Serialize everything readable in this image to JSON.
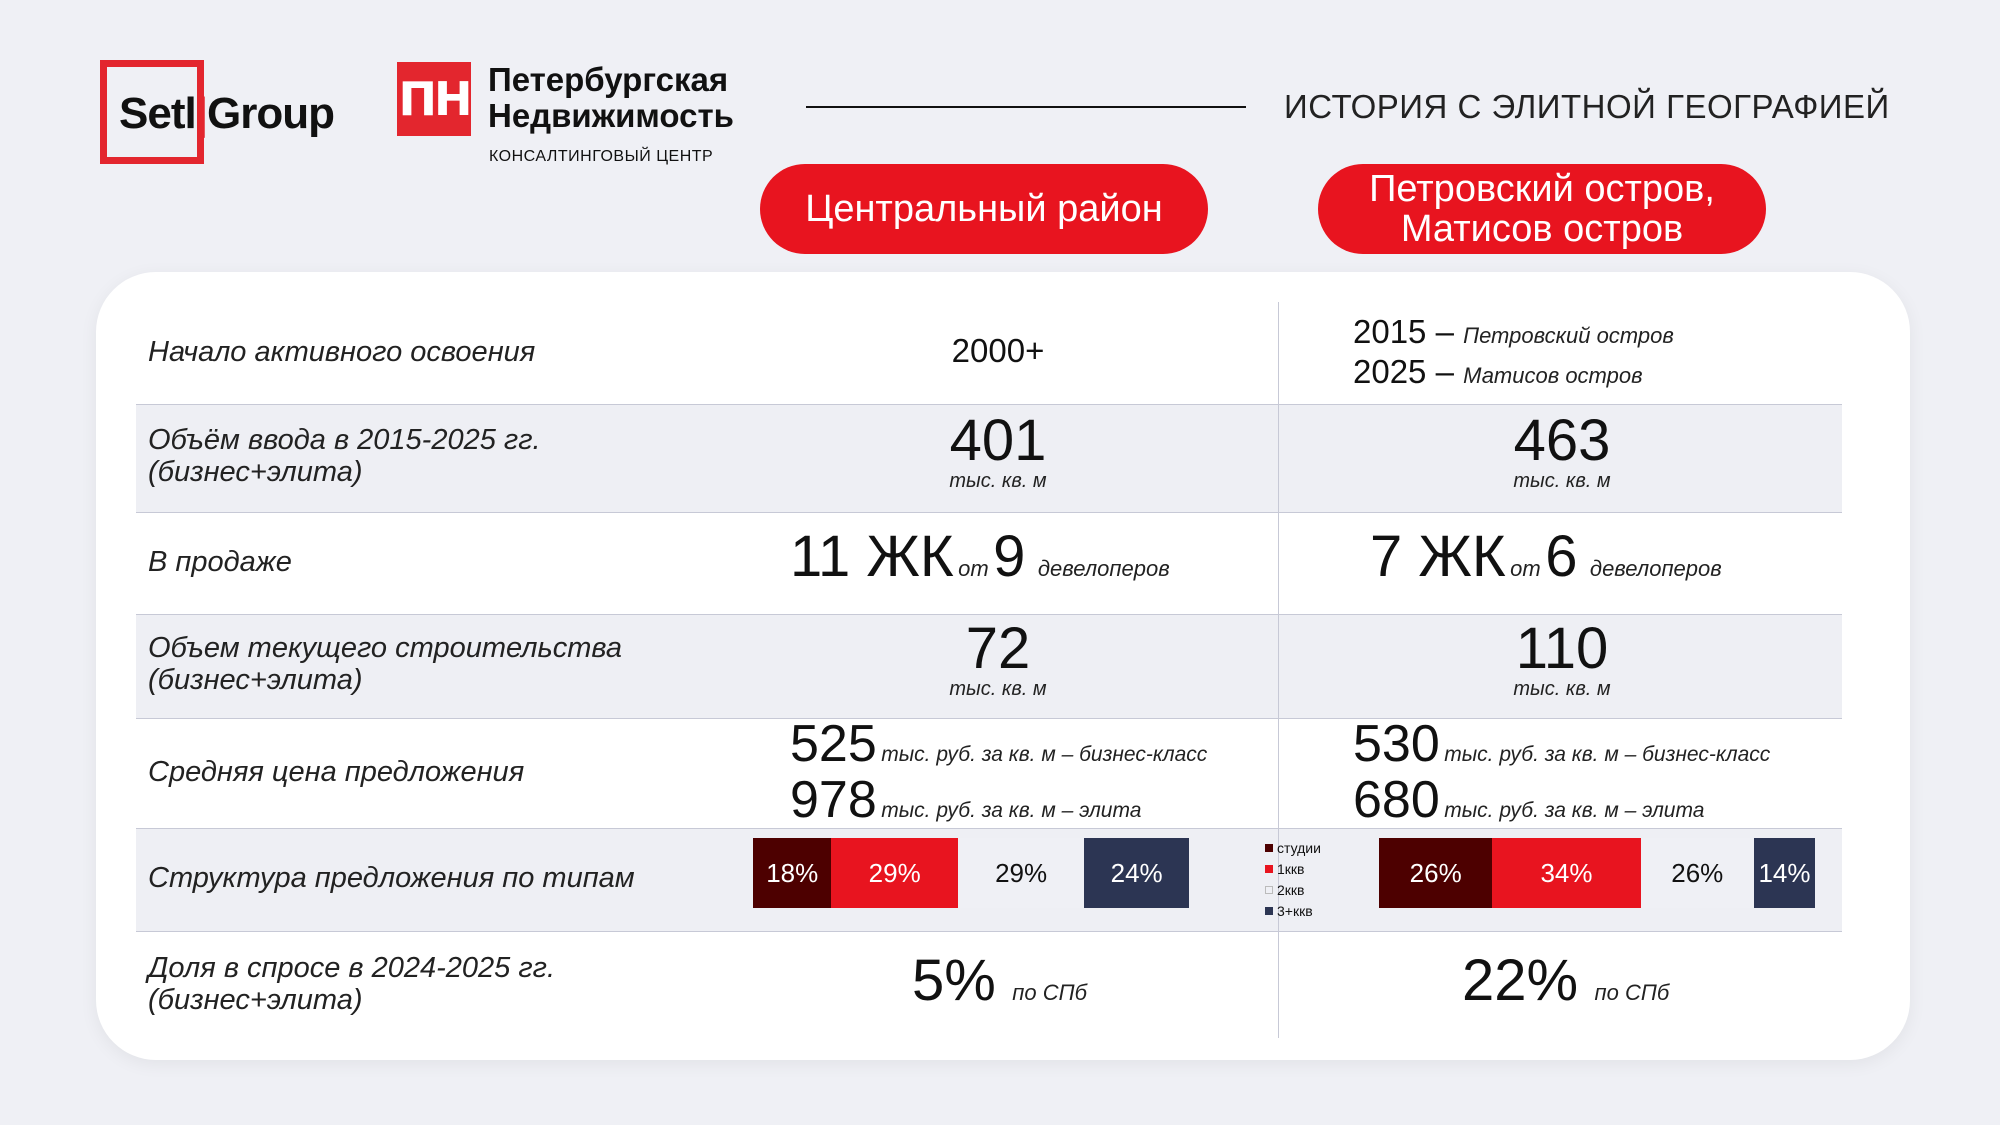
{
  "header": {
    "setl_logo": "Setl Group",
    "pn_mark": "ПН",
    "pn_title_1": "Петербургская",
    "pn_title_2": "Недвижимость",
    "pn_subtitle": "КОНСАЛТИНГОВЫЙ ЦЕНТР",
    "title": "ИСТОРИЯ С ЭЛИТНОЙ ГЕОГРАФИЕЙ"
  },
  "columns": {
    "col1": "Центральный район",
    "col2_line1": "Петровский остров,",
    "col2_line2": "Матисов остров"
  },
  "rows": {
    "start": {
      "label": "Начало активного освоения",
      "col1": "2000+",
      "col2_year1": "2015",
      "col2_dash1": "–",
      "col2_place1": "Петровский остров",
      "col2_year2": "2025",
      "col2_dash2": "–",
      "col2_place2": "Матисов остров"
    },
    "volume": {
      "label_1": "Объём ввода в 2015-2025 гг.",
      "label_2": "(бизнес+элита)",
      "col1": "401",
      "col2": "463",
      "unit": "тыс. кв. м"
    },
    "sale": {
      "label": "В продаже",
      "col1_count": "11 ЖК",
      "col1_dev": "9",
      "col2_count": "7 ЖК",
      "col2_dev": "6",
      "from": "от",
      "developers": "девелоперов"
    },
    "construction": {
      "label_1": "Объем текущего строительства",
      "label_2": "(бизнес+элита)",
      "col1": "72",
      "col2": "110",
      "unit": "тыс. кв. м"
    },
    "price": {
      "label": "Средняя цена предложения",
      "col1_business": "525",
      "col1_elite": "978",
      "col2_business": "530",
      "col2_elite": "680",
      "business_unit": "тыс. руб. за кв. м – бизнес-класс",
      "elite_unit": "тыс. руб. за кв. м – элита"
    },
    "structure": {
      "label": "Структура предложения по типам",
      "col1": [
        {
          "label": "18%",
          "value": 18,
          "color": "#4d0000"
        },
        {
          "label": "29%",
          "value": 29,
          "color": "#e8141f"
        },
        {
          "label": "29%",
          "value": 29,
          "color": "#eff0f5"
        },
        {
          "label": "24%",
          "value": 24,
          "color": "#2c3553"
        }
      ],
      "col2": [
        {
          "label": "26%",
          "value": 26,
          "color": "#4d0000"
        },
        {
          "label": "34%",
          "value": 34,
          "color": "#e8141f"
        },
        {
          "label": "26%",
          "value": 26,
          "color": "#eff0f5"
        },
        {
          "label": "14%",
          "value": 14,
          "color": "#2c3553"
        }
      ],
      "legend": [
        {
          "label": "студии",
          "color": "#4d0000"
        },
        {
          "label": "1ккв",
          "color": "#e8141f"
        },
        {
          "label": "2ккв",
          "color": "#eff0f5"
        },
        {
          "label": "3+ккв",
          "color": "#2c3553"
        }
      ]
    },
    "demand": {
      "label_1": "Доля в спросе в 2024-2025 гг.",
      "label_2": "(бизнес+элита)",
      "col1": "5%",
      "col2": "22%",
      "unit": "по СПб"
    }
  }
}
